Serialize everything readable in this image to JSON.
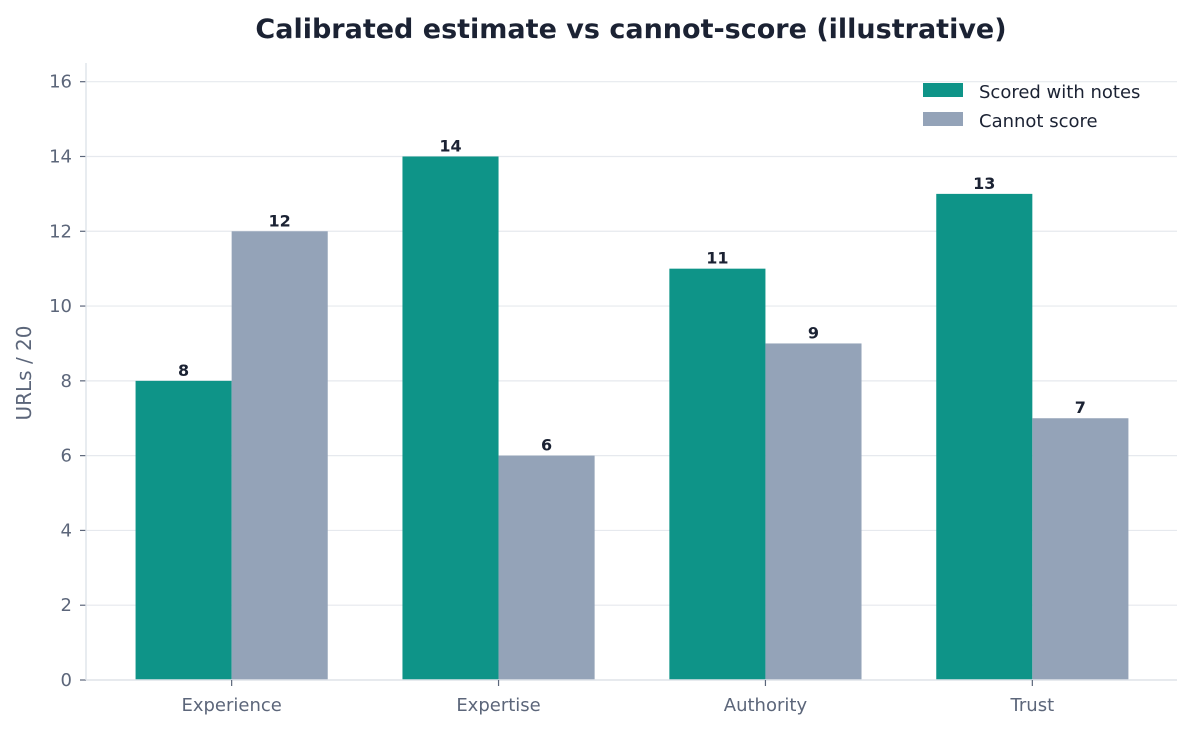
{
  "chart_data": {
    "type": "bar",
    "title": "Calibrated estimate vs cannot-score (illustrative)",
    "xlabel": "",
    "ylabel": "URLs / 20",
    "categories": [
      "Experience",
      "Expertise",
      "Authority",
      "Trust"
    ],
    "series": [
      {
        "name": "Scored with notes",
        "color": "#0e9488",
        "values": [
          8,
          14,
          11,
          13
        ]
      },
      {
        "name": "Cannot score",
        "color": "#94a3b8",
        "values": [
          12,
          6,
          9,
          7
        ]
      }
    ],
    "ylim": [
      0,
      16.5
    ],
    "yticks": [
      0,
      2,
      4,
      6,
      8,
      10,
      12,
      14,
      16
    ],
    "grid": true,
    "legend_position": "top-right",
    "show_data_labels": true
  }
}
